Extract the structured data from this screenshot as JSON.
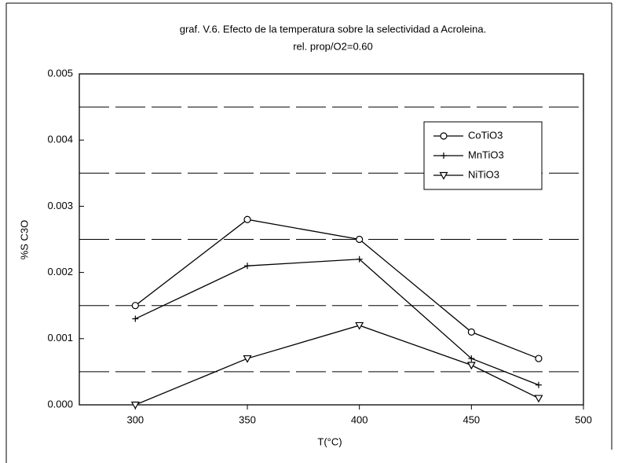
{
  "chart_data": {
    "type": "line",
    "title": "graf. V.6. Efecto de la temperatura sobre la selectividad a Acroleina.",
    "subtitle": "rel. prop/O2=0.60",
    "x_label": "T(°C)",
    "y_label": "%S C3O",
    "x": [
      300,
      350,
      400,
      450,
      480
    ],
    "series": [
      {
        "name": "CoTiO3",
        "color": "#000000",
        "marker": "circle",
        "values": [
          0.0015,
          0.0028,
          0.0025,
          0.0011,
          0.0007
        ]
      },
      {
        "name": "MnTiO3",
        "color": "#000000",
        "marker": "plus",
        "values": [
          0.0013,
          0.0021,
          0.0022,
          0.0007,
          0.0003
        ]
      },
      {
        "name": "NiTiO3",
        "color": "#000000",
        "marker": "triangle-down",
        "values": [
          0.0,
          0.0007,
          0.0012,
          0.0006,
          0.0001
        ]
      }
    ],
    "xlim": [
      275,
      500
    ],
    "xticks": [
      300,
      350,
      400,
      450,
      500
    ],
    "ylim": [
      0,
      0.005
    ],
    "yticks": [
      {
        "value": 0,
        "label": "0.000"
      },
      {
        "value": 0.001,
        "label": "0.001"
      },
      {
        "value": 0.002,
        "label": "0.002"
      },
      {
        "value": 0.003,
        "label": "0.003"
      },
      {
        "value": 0.004,
        "label": "0.004"
      },
      {
        "value": 0.005,
        "label": "0.005"
      }
    ],
    "dashed_lines": [
      0.0005,
      0.0015,
      0.0025,
      0.0035,
      0.0045
    ],
    "legend": "upper right"
  }
}
